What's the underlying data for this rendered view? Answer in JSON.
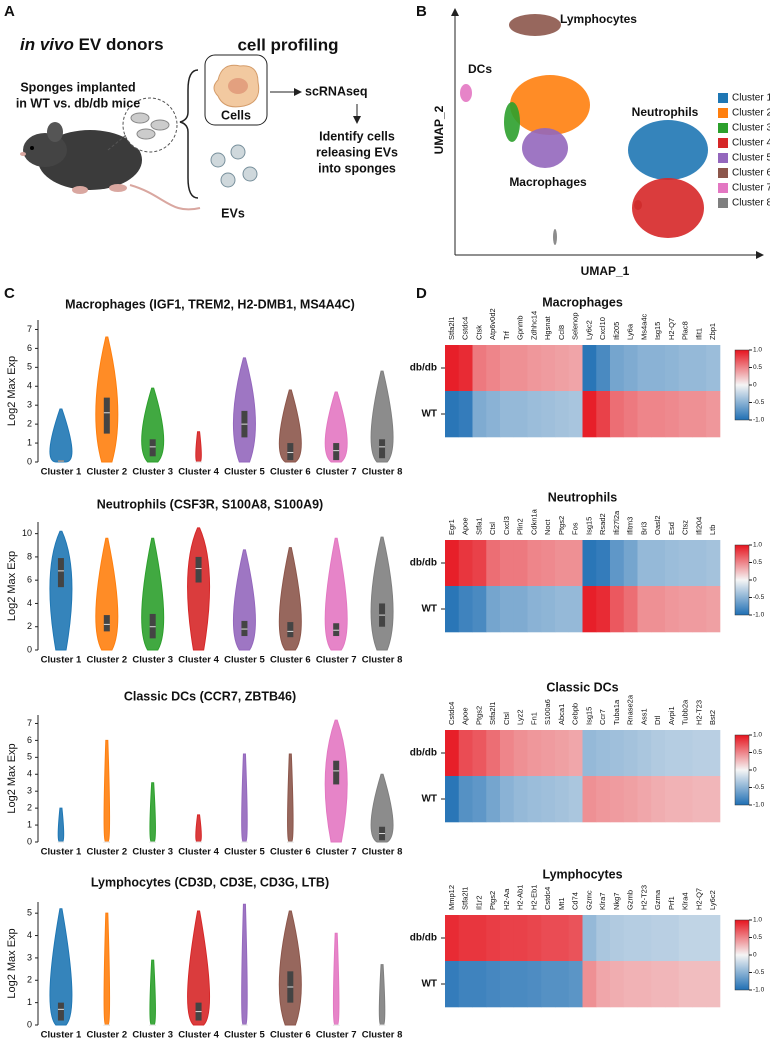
{
  "clusters": [
    {
      "name": "Cluster 1",
      "color": "#1f77b4"
    },
    {
      "name": "Cluster 2",
      "color": "#ff7f0e"
    },
    {
      "name": "Cluster 3",
      "color": "#2ca02c"
    },
    {
      "name": "Cluster 4",
      "color": "#d62728"
    },
    {
      "name": "Cluster 5",
      "color": "#9467bd"
    },
    {
      "name": "Cluster 6",
      "color": "#8c564b"
    },
    {
      "name": "Cluster 7",
      "color": "#e377c2"
    },
    {
      "name": "Cluster 8",
      "color": "#7f7f7f"
    }
  ],
  "panel_a": {
    "label": "A",
    "title_italic": "in vivo",
    "title_rest": "EV donors",
    "title_right": "cell profiling",
    "sponges": [
      "Sponges implanted",
      "in WT vs. db/db mice"
    ],
    "cells": "Cells",
    "evs": "EVs",
    "scrnaseq": "scRNAseq",
    "identify": [
      "Identify cells",
      "releasing EVs",
      "into sponges"
    ]
  },
  "panel_b": {
    "label": "B",
    "x_label": "UMAP_1",
    "y_label": "UMAP_2",
    "annotations": [
      "Lymphocytes",
      "DCs",
      "Neutrophils",
      "Macrophages"
    ]
  },
  "panel_c": {
    "label": "C",
    "y_label": "Log2 Max Exp",
    "plots": [
      {
        "title": "Macrophages (IGF1, TREM2, H2-DMB1, MS4A4C)",
        "ylim": [
          0,
          7.5
        ],
        "yticks": [
          0,
          1,
          2,
          3,
          4,
          5,
          6,
          7
        ],
        "max": [
          2.8,
          6.6,
          3.9,
          1.6,
          5.5,
          3.8,
          3.7,
          4.8
        ],
        "median": [
          0.05,
          2.6,
          0.8,
          0,
          2.0,
          0.5,
          0.6,
          0.8
        ],
        "q1": [
          0,
          1.5,
          0.3,
          0,
          1.3,
          0.1,
          0.1,
          0.2
        ],
        "q3": [
          0.1,
          3.4,
          1.2,
          0,
          2.7,
          1.0,
          1.0,
          1.2
        ]
      },
      {
        "title": "Neutrophils (CSF3R, S100A8, S100A9)",
        "ylim": [
          0,
          11
        ],
        "yticks": [
          0,
          2,
          4,
          6,
          8,
          10
        ],
        "max": [
          10.2,
          9.6,
          9.6,
          10.5,
          8.6,
          8.8,
          9.6,
          9.7
        ],
        "median": [
          6.8,
          2.2,
          2.0,
          7.0,
          1.8,
          1.6,
          1.7,
          3.0
        ],
        "q1": [
          5.4,
          1.6,
          1.0,
          5.8,
          1.2,
          1.1,
          1.2,
          2.0
        ],
        "q3": [
          7.9,
          3.0,
          3.1,
          8.0,
          2.5,
          2.4,
          2.3,
          4.0
        ]
      },
      {
        "title": "Classic DCs (CCR7, ZBTB46)",
        "ylim": [
          0,
          7.5
        ],
        "yticks": [
          0,
          1,
          2,
          3,
          4,
          5,
          6,
          7
        ],
        "max": [
          2.0,
          6.0,
          3.5,
          1.6,
          5.2,
          5.2,
          7.2,
          4.0
        ],
        "median": [
          0,
          0,
          0,
          0,
          0,
          0,
          4.2,
          0.5
        ],
        "q1": [
          0,
          0,
          0,
          0,
          0,
          0,
          3.4,
          0.1
        ],
        "q3": [
          0,
          0,
          0,
          0,
          0,
          0,
          4.8,
          0.9
        ]
      },
      {
        "title": "Lymphocytes (CD3D, CD3E, CD3G, LTB)",
        "ylim": [
          0,
          5.5
        ],
        "yticks": [
          0,
          1,
          2,
          3,
          4,
          5
        ],
        "max": [
          5.2,
          5.0,
          2.9,
          5.1,
          5.4,
          5.1,
          4.1,
          2.7
        ],
        "median": [
          0.7,
          0,
          0,
          0.6,
          0,
          1.7,
          0,
          0
        ],
        "q1": [
          0.2,
          0,
          0,
          0.2,
          0,
          1.0,
          0,
          0
        ],
        "q3": [
          1.0,
          0,
          0,
          1.0,
          0,
          2.4,
          0,
          0
        ]
      }
    ]
  },
  "panel_d": {
    "label": "D",
    "rows": [
      "db/db",
      "WT"
    ],
    "colorbar": {
      "lim": [
        -1,
        1
      ],
      "ticks": [
        {
          "value": 1,
          "label": "1.0"
        },
        0.5,
        0,
        -0.5,
        {
          "value": -1,
          "label": "-1.0"
        }
      ]
    },
    "heatmaps": [
      {
        "title": "Macrophages",
        "genes": [
          "Stfa2l1",
          "Cstdc4",
          "Ctsk",
          "Atp6v0d2",
          "Trf",
          "Gpnmb",
          "Zdhhc14",
          "Hgsnat",
          "Ccl8",
          "Selenop",
          "Ly6c2",
          "Cxcl10",
          "Ifi205",
          "Ly6a",
          "Ms4a4c",
          "Isg15",
          "H2-Q7",
          "Plac8",
          "Ifit1",
          "Zbp1"
        ],
        "values": [
          [
            0.95,
            0.9,
            0.55,
            0.5,
            0.45,
            0.45,
            0.42,
            0.4,
            0.38,
            0.36,
            -0.95,
            -0.8,
            -0.6,
            -0.55,
            -0.5,
            -0.5,
            -0.48,
            -0.45,
            -0.45,
            -0.42
          ],
          [
            -0.95,
            -0.9,
            -0.55,
            -0.5,
            -0.45,
            -0.45,
            -0.42,
            -0.4,
            -0.38,
            -0.36,
            0.95,
            0.8,
            0.6,
            0.55,
            0.5,
            0.5,
            0.48,
            0.45,
            0.45,
            0.42
          ]
        ]
      },
      {
        "title": "Neutrophils",
        "genes": [
          "Egr1",
          "Apoe",
          "Stfa1",
          "Ctsl",
          "Cxcl3",
          "Plin2",
          "Cdkn1a",
          "Noct",
          "Ptgs2",
          "Fos",
          "Isg15",
          "Rsad2",
          "Ifi27l2a",
          "Ifitm3",
          "Bri3",
          "Oasl2",
          "Esd",
          "Ctsz",
          "Ifi204",
          "Ltb"
        ],
        "values": [
          [
            0.95,
            0.85,
            0.8,
            0.6,
            0.55,
            0.55,
            0.5,
            0.48,
            0.45,
            0.45,
            -0.95,
            -0.9,
            -0.7,
            -0.6,
            -0.45,
            -0.45,
            -0.42,
            -0.4,
            -0.4,
            -0.38
          ],
          [
            -0.95,
            -0.85,
            -0.8,
            -0.6,
            -0.55,
            -0.55,
            -0.5,
            -0.48,
            -0.45,
            -0.45,
            0.95,
            0.9,
            0.7,
            0.6,
            0.45,
            0.45,
            0.42,
            0.4,
            0.4,
            0.38
          ]
        ]
      },
      {
        "title": "Classic DCs",
        "genes": [
          "Cstdc4",
          "Apoe",
          "Ptgs2",
          "Stfa2l1",
          "Ctsl",
          "Lyz2",
          "Fn1",
          "S100a6",
          "Abca1",
          "Cebpb",
          "Isg15",
          "Ccr7",
          "Tuba1a",
          "Rnase2a",
          "Ass1",
          "Dtl",
          "Avpi1",
          "Tubb2a",
          "H2-T23",
          "Bst2"
        ],
        "values": [
          [
            0.95,
            0.75,
            0.7,
            0.6,
            0.5,
            0.45,
            0.42,
            0.4,
            0.38,
            0.35,
            -0.45,
            -0.42,
            -0.4,
            -0.38,
            -0.35,
            -0.32,
            -0.3,
            -0.3,
            -0.28,
            -0.28
          ],
          [
            -0.95,
            -0.75,
            -0.7,
            -0.6,
            -0.5,
            -0.45,
            -0.42,
            -0.4,
            -0.38,
            -0.35,
            0.45,
            0.42,
            0.4,
            0.38,
            0.35,
            0.32,
            0.3,
            0.3,
            0.28,
            0.28
          ]
        ]
      },
      {
        "title": "Lymphocytes",
        "genes": [
          "Mmp12",
          "Stfa2l1",
          "Il1r2",
          "Ptgs2",
          "H2-Aa",
          "H2-Ab1",
          "H2-Eb1",
          "Cstdc4",
          "Mt1",
          "Cd74",
          "Gzmc",
          "Klra7",
          "Nkg7",
          "Gzmb",
          "H2-T23",
          "Gzma",
          "Prf1",
          "Klra4",
          "H2-Q7",
          "Ly6c2"
        ],
        "values": [
          [
            0.9,
            0.85,
            0.85,
            0.82,
            0.8,
            0.8,
            0.78,
            0.75,
            0.75,
            0.72,
            -0.45,
            -0.35,
            -0.32,
            -0.3,
            -0.3,
            -0.28,
            -0.28,
            -0.25,
            -0.25,
            -0.25
          ],
          [
            -0.9,
            -0.85,
            -0.85,
            -0.82,
            -0.8,
            -0.8,
            -0.78,
            -0.75,
            -0.75,
            -0.72,
            0.45,
            0.35,
            0.32,
            0.3,
            0.3,
            0.28,
            0.28,
            0.25,
            0.25,
            0.25
          ]
        ]
      }
    ]
  }
}
